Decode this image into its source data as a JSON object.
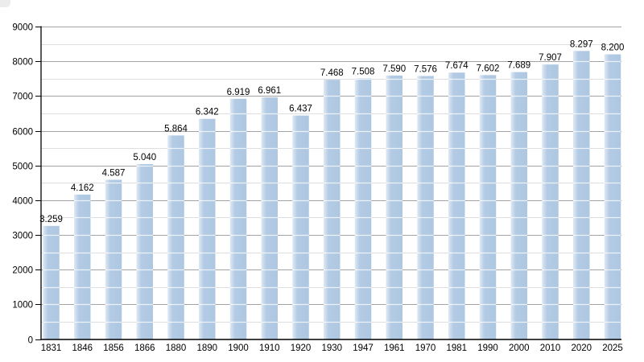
{
  "chart_data": {
    "type": "bar",
    "title": "",
    "xlabel": "",
    "ylabel": "",
    "categories": [
      "1831",
      "1846",
      "1856",
      "1866",
      "1880",
      "1890",
      "1900",
      "1910",
      "1920",
      "1930",
      "1947",
      "1961",
      "1970",
      "1981",
      "1990",
      "2000",
      "2010",
      "2020",
      "2025"
    ],
    "values": [
      3259,
      4162,
      4587,
      5040,
      5864,
      6342,
      6919,
      6961,
      6437,
      7468,
      7508,
      7590,
      7576,
      7674,
      7602,
      7689,
      7907,
      8297,
      8200
    ],
    "value_labels": [
      "3.259",
      "4.162",
      "4.587",
      "5.040",
      "5.864",
      "6.342",
      "6.919",
      "6.961",
      "6.437",
      "7.468",
      "7.508",
      "7.590",
      "7.576",
      "7.674",
      "7.602",
      "7.689",
      "7.907",
      "8.297",
      "8.200"
    ],
    "ylim": [
      0,
      9000
    ],
    "y_tick_labels": [
      "0",
      "1000",
      "2000",
      "3000",
      "4000",
      "5000",
      "6000",
      "7000",
      "8000",
      "9000"
    ],
    "major_grid_step": 1000,
    "minor_grid_step": 500,
    "grid": true,
    "legend": false,
    "colors": {
      "bar": "#b3cbe4",
      "bar_highlight": "#dfe9f4",
      "bar_shade": "#aec7e1",
      "grid_major": "#a3a3a3",
      "grid_minor": "#dedede",
      "bar_gridline_overlay": "rgba(255,255,255,0.75)",
      "axis": "#000000",
      "text": "#000000",
      "corner_artifact": "#ececec"
    }
  }
}
